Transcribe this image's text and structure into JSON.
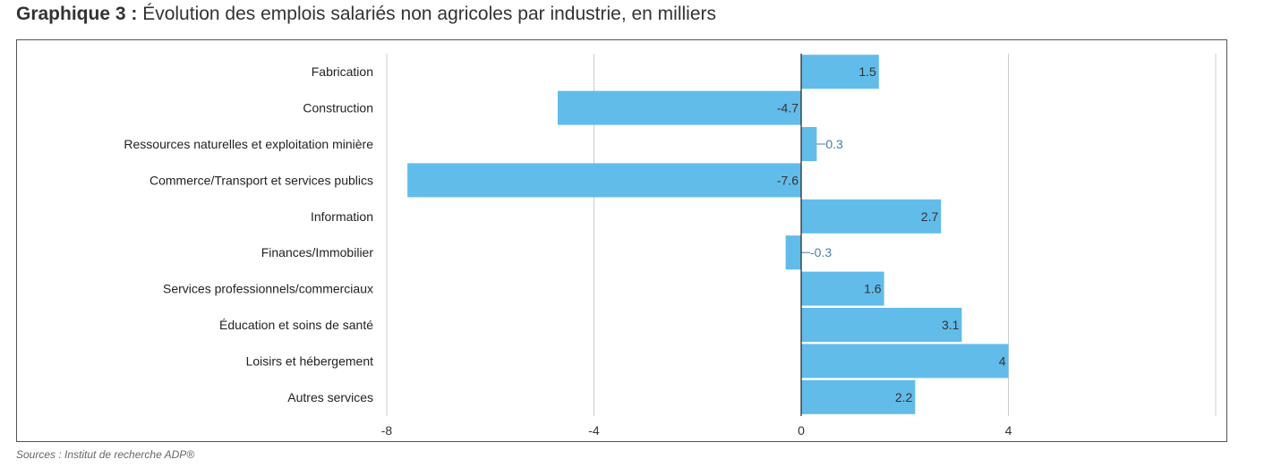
{
  "header": {
    "prefix": "Graphique 3 :",
    "title": "Évolution des emplois salariés non agricoles par industrie, en milliers"
  },
  "footer": {
    "source": "Sources : Institut de recherche ADP®"
  },
  "colors": {
    "bar": "#62bce9",
    "grid": "#cccccc",
    "zero_axis": "#222222",
    "inside_label": "#333333",
    "outside_label": "#4a7ea8"
  },
  "chart_data": {
    "type": "bar",
    "orientation": "horizontal",
    "categories": [
      "Fabrication",
      "Construction",
      "Ressources naturelles et exploitation minière",
      "Commerce/Transport et services publics",
      "Information",
      "Finances/Immobilier",
      "Services professionnels/commerciaux",
      "Éducation et soins de santé",
      "Loisirs et hébergement",
      "Autres services"
    ],
    "values": [
      1.5,
      -4.7,
      0.3,
      -7.6,
      2.7,
      -0.3,
      1.6,
      3.1,
      4,
      2.2
    ],
    "value_labels": [
      "1.5",
      "-4.7",
      "0.3",
      "-7.6",
      "2.7",
      "-0.3",
      "1.6",
      "3.1",
      "4",
      "2.2"
    ],
    "xlim": [
      -8,
      8
    ],
    "xticks": [
      -8,
      -4,
      0,
      4
    ],
    "grid": true,
    "legend": "none"
  }
}
